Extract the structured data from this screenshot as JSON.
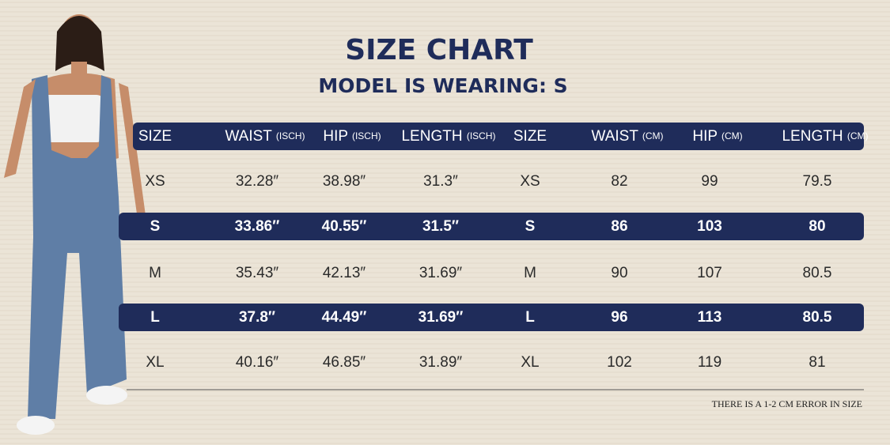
{
  "title": "SIZE CHART",
  "subtitle": "MODEL IS WEARING: S",
  "table": {
    "header": [
      {
        "label": "SIZE"
      },
      {
        "label": "WAIST",
        "unit": "(ISCH)"
      },
      {
        "label": "HIP",
        "unit": "(ISCH)"
      },
      {
        "label": "LENGTH",
        "unit": "(ISCH)"
      },
      {
        "label": "SIZE"
      },
      {
        "label": "WAIST",
        "unit": "(CM)"
      },
      {
        "label": "HIP",
        "unit": "(CM)"
      },
      {
        "label": "LENGTH",
        "unit": "(CM)"
      }
    ],
    "rows": [
      [
        "XS",
        "32.28″",
        "38.98″",
        "31.3″",
        "XS",
        "82",
        "99",
        "79.5"
      ],
      [
        "S",
        "33.86″",
        "40.55″",
        "31.5″",
        "S",
        "86",
        "103",
        "80"
      ],
      [
        "M",
        "35.43″",
        "42.13″",
        "31.69″",
        "M",
        "90",
        "107",
        "80.5"
      ],
      [
        "L",
        "37.8″",
        "44.49″",
        "31.69″",
        "L",
        "96",
        "113",
        "80.5"
      ],
      [
        "XL",
        "40.16″",
        "46.85″",
        "31.89″",
        "XL",
        "102",
        "119",
        "81"
      ]
    ]
  },
  "note": "THERE IS A 1-2 CM ERROR IN SIZE"
}
